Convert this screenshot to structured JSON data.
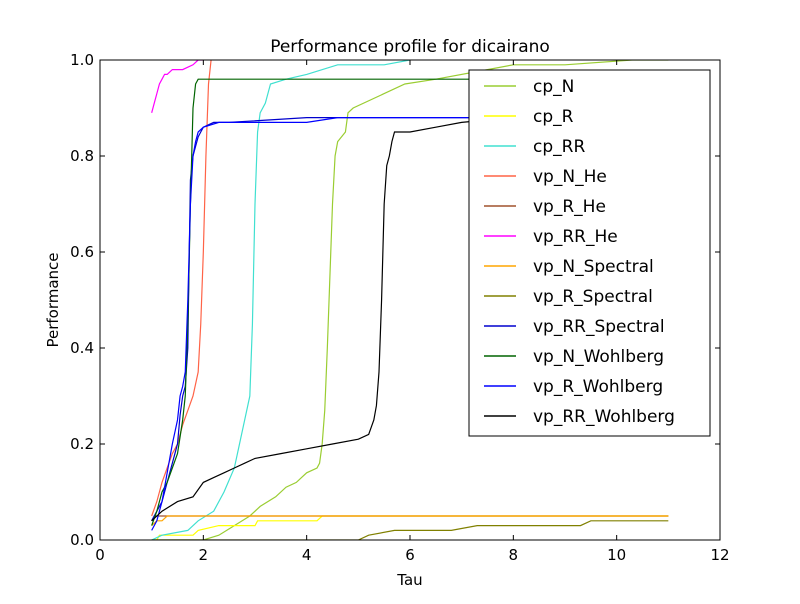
{
  "chart_data": {
    "type": "line",
    "title": "Performance profile for dicairano",
    "xlabel": "Tau",
    "ylabel": "Performance",
    "xlim": [
      0,
      12
    ],
    "ylim": [
      0,
      1
    ],
    "xticks": [
      0,
      2,
      4,
      6,
      8,
      10,
      12
    ],
    "yticks": [
      0.0,
      0.2,
      0.4,
      0.6,
      0.8,
      1.0
    ],
    "xtick_labels": [
      "0",
      "2",
      "4",
      "6",
      "8",
      "10",
      "12"
    ],
    "ytick_labels": [
      "0.0",
      "0.2",
      "0.4",
      "0.6",
      "0.8",
      "1.0"
    ],
    "grid": false,
    "legend_position": "top-right",
    "series": [
      {
        "name": "cp_N",
        "color": "#9acd32",
        "points": [
          [
            1.0,
            0.0
          ],
          [
            1.5,
            0.0
          ],
          [
            2.0,
            0.0
          ],
          [
            2.3,
            0.01
          ],
          [
            2.6,
            0.03
          ],
          [
            2.9,
            0.05
          ],
          [
            3.1,
            0.07
          ],
          [
            3.4,
            0.09
          ],
          [
            3.6,
            0.11
          ],
          [
            3.8,
            0.12
          ],
          [
            3.9,
            0.13
          ],
          [
            4.0,
            0.14
          ],
          [
            4.2,
            0.15
          ],
          [
            4.25,
            0.16
          ],
          [
            4.3,
            0.2
          ],
          [
            4.35,
            0.27
          ],
          [
            4.4,
            0.4
          ],
          [
            4.45,
            0.55
          ],
          [
            4.5,
            0.7
          ],
          [
            4.55,
            0.8
          ],
          [
            4.6,
            0.83
          ],
          [
            4.75,
            0.85
          ],
          [
            4.8,
            0.89
          ],
          [
            4.9,
            0.9
          ],
          [
            5.5,
            0.93
          ],
          [
            5.9,
            0.95
          ],
          [
            6.5,
            0.96
          ],
          [
            7.5,
            0.98
          ],
          [
            8.0,
            0.99
          ],
          [
            9.0,
            0.99
          ],
          [
            10.3,
            1.0
          ],
          [
            11.0,
            1.0
          ]
        ]
      },
      {
        "name": "cp_R",
        "color": "#ffff00",
        "points": [
          [
            1.0,
            0.0
          ],
          [
            1.1,
            0.0
          ],
          [
            1.15,
            0.01
          ],
          [
            1.8,
            0.01
          ],
          [
            1.9,
            0.02
          ],
          [
            2.3,
            0.03
          ],
          [
            2.6,
            0.03
          ],
          [
            3.0,
            0.03
          ],
          [
            3.05,
            0.04
          ],
          [
            4.2,
            0.04
          ],
          [
            4.3,
            0.05
          ],
          [
            11.0,
            0.05
          ]
        ]
      },
      {
        "name": "cp_RR",
        "color": "#40e0d0",
        "points": [
          [
            1.0,
            0.0
          ],
          [
            1.2,
            0.01
          ],
          [
            1.7,
            0.02
          ],
          [
            1.9,
            0.04
          ],
          [
            2.2,
            0.06
          ],
          [
            2.4,
            0.1
          ],
          [
            2.6,
            0.15
          ],
          [
            2.7,
            0.2
          ],
          [
            2.8,
            0.25
          ],
          [
            2.9,
            0.3
          ],
          [
            2.95,
            0.45
          ],
          [
            3.0,
            0.7
          ],
          [
            3.05,
            0.85
          ],
          [
            3.1,
            0.89
          ],
          [
            3.2,
            0.91
          ],
          [
            3.3,
            0.95
          ],
          [
            3.6,
            0.96
          ],
          [
            4.0,
            0.97
          ],
          [
            4.6,
            0.99
          ],
          [
            5.5,
            0.99
          ],
          [
            6.0,
            1.0
          ]
        ]
      },
      {
        "name": "vp_N_He",
        "color": "#ff6347",
        "points": [
          [
            1.0,
            0.05
          ],
          [
            1.1,
            0.08
          ],
          [
            1.2,
            0.12
          ],
          [
            1.3,
            0.15
          ],
          [
            1.4,
            0.18
          ],
          [
            1.5,
            0.2
          ],
          [
            1.6,
            0.24
          ],
          [
            1.7,
            0.27
          ],
          [
            1.8,
            0.3
          ],
          [
            1.9,
            0.35
          ],
          [
            1.95,
            0.45
          ],
          [
            2.0,
            0.6
          ],
          [
            2.05,
            0.8
          ],
          [
            2.1,
            0.95
          ],
          [
            2.15,
            1.0
          ]
        ]
      },
      {
        "name": "vp_R_He",
        "color": "#a0522d",
        "points": [
          [
            1.0,
            0.04
          ],
          [
            1.05,
            0.05
          ],
          [
            11.0,
            0.05
          ]
        ]
      },
      {
        "name": "vp_RR_He",
        "color": "#ff00ff",
        "points": [
          [
            1.0,
            0.89
          ],
          [
            1.05,
            0.91
          ],
          [
            1.1,
            0.93
          ],
          [
            1.15,
            0.95
          ],
          [
            1.2,
            0.96
          ],
          [
            1.25,
            0.97
          ],
          [
            1.3,
            0.97
          ],
          [
            1.4,
            0.98
          ],
          [
            1.6,
            0.98
          ],
          [
            1.8,
            0.99
          ],
          [
            1.9,
            1.0
          ],
          [
            2.0,
            1.0
          ]
        ]
      },
      {
        "name": "vp_N_Spectral",
        "color": "#ffa500",
        "points": [
          [
            1.0,
            0.03
          ],
          [
            1.1,
            0.04
          ],
          [
            1.2,
            0.04
          ],
          [
            1.3,
            0.05
          ],
          [
            11.0,
            0.05
          ]
        ]
      },
      {
        "name": "vp_R_Spectral",
        "color": "#808000",
        "points": [
          [
            1.0,
            0.0
          ],
          [
            3.0,
            0.0
          ],
          [
            5.0,
            0.0
          ],
          [
            5.2,
            0.01
          ],
          [
            5.7,
            0.02
          ],
          [
            6.8,
            0.02
          ],
          [
            7.3,
            0.03
          ],
          [
            9.3,
            0.03
          ],
          [
            9.5,
            0.04
          ],
          [
            11.0,
            0.04
          ]
        ]
      },
      {
        "name": "vp_RR_Spectral",
        "color": "#0000cd",
        "points": [
          [
            1.0,
            0.04
          ],
          [
            1.2,
            0.08
          ],
          [
            1.3,
            0.12
          ],
          [
            1.4,
            0.16
          ],
          [
            1.5,
            0.2
          ],
          [
            1.55,
            0.26
          ],
          [
            1.6,
            0.3
          ],
          [
            1.65,
            0.32
          ],
          [
            1.7,
            0.4
          ],
          [
            1.72,
            0.55
          ],
          [
            1.75,
            0.75
          ],
          [
            1.8,
            0.8
          ],
          [
            1.85,
            0.82
          ],
          [
            1.9,
            0.84
          ],
          [
            1.95,
            0.85
          ],
          [
            2.0,
            0.86
          ],
          [
            2.2,
            0.87
          ],
          [
            2.5,
            0.87
          ],
          [
            4.0,
            0.88
          ],
          [
            4.5,
            0.88
          ],
          [
            11.0,
            0.88
          ]
        ]
      },
      {
        "name": "vp_N_Wohlberg",
        "color": "#006400",
        "points": [
          [
            1.0,
            0.03
          ],
          [
            1.1,
            0.06
          ],
          [
            1.2,
            0.1
          ],
          [
            1.3,
            0.12
          ],
          [
            1.4,
            0.15
          ],
          [
            1.5,
            0.18
          ],
          [
            1.6,
            0.25
          ],
          [
            1.65,
            0.3
          ],
          [
            1.7,
            0.45
          ],
          [
            1.75,
            0.7
          ],
          [
            1.8,
            0.9
          ],
          [
            1.85,
            0.95
          ],
          [
            1.9,
            0.96
          ],
          [
            3.0,
            0.96
          ],
          [
            5.0,
            0.96
          ],
          [
            11.0,
            0.96
          ]
        ]
      },
      {
        "name": "vp_R_Wohlberg",
        "color": "#0000ff",
        "points": [
          [
            1.0,
            0.02
          ],
          [
            1.1,
            0.04
          ],
          [
            1.2,
            0.08
          ],
          [
            1.3,
            0.14
          ],
          [
            1.4,
            0.2
          ],
          [
            1.5,
            0.25
          ],
          [
            1.55,
            0.3
          ],
          [
            1.6,
            0.32
          ],
          [
            1.65,
            0.35
          ],
          [
            1.7,
            0.5
          ],
          [
            1.75,
            0.7
          ],
          [
            1.8,
            0.8
          ],
          [
            1.85,
            0.83
          ],
          [
            1.9,
            0.85
          ],
          [
            2.0,
            0.86
          ],
          [
            2.3,
            0.87
          ],
          [
            4.0,
            0.87
          ],
          [
            4.6,
            0.88
          ],
          [
            11.0,
            0.88
          ]
        ]
      },
      {
        "name": "vp_RR_Wohlberg",
        "color": "#000000",
        "points": [
          [
            1.0,
            0.04
          ],
          [
            1.2,
            0.06
          ],
          [
            1.5,
            0.08
          ],
          [
            1.8,
            0.09
          ],
          [
            2.0,
            0.12
          ],
          [
            2.2,
            0.13
          ],
          [
            2.4,
            0.14
          ],
          [
            2.6,
            0.15
          ],
          [
            2.8,
            0.16
          ],
          [
            3.0,
            0.17
          ],
          [
            3.5,
            0.18
          ],
          [
            4.0,
            0.19
          ],
          [
            4.5,
            0.2
          ],
          [
            5.0,
            0.21
          ],
          [
            5.2,
            0.22
          ],
          [
            5.3,
            0.25
          ],
          [
            5.35,
            0.28
          ],
          [
            5.4,
            0.35
          ],
          [
            5.45,
            0.5
          ],
          [
            5.5,
            0.7
          ],
          [
            5.55,
            0.78
          ],
          [
            5.6,
            0.8
          ],
          [
            5.65,
            0.83
          ],
          [
            5.7,
            0.85
          ],
          [
            6.0,
            0.85
          ],
          [
            6.5,
            0.86
          ],
          [
            7.0,
            0.87
          ],
          [
            8.0,
            0.88
          ],
          [
            11.0,
            0.88
          ]
        ]
      }
    ]
  }
}
